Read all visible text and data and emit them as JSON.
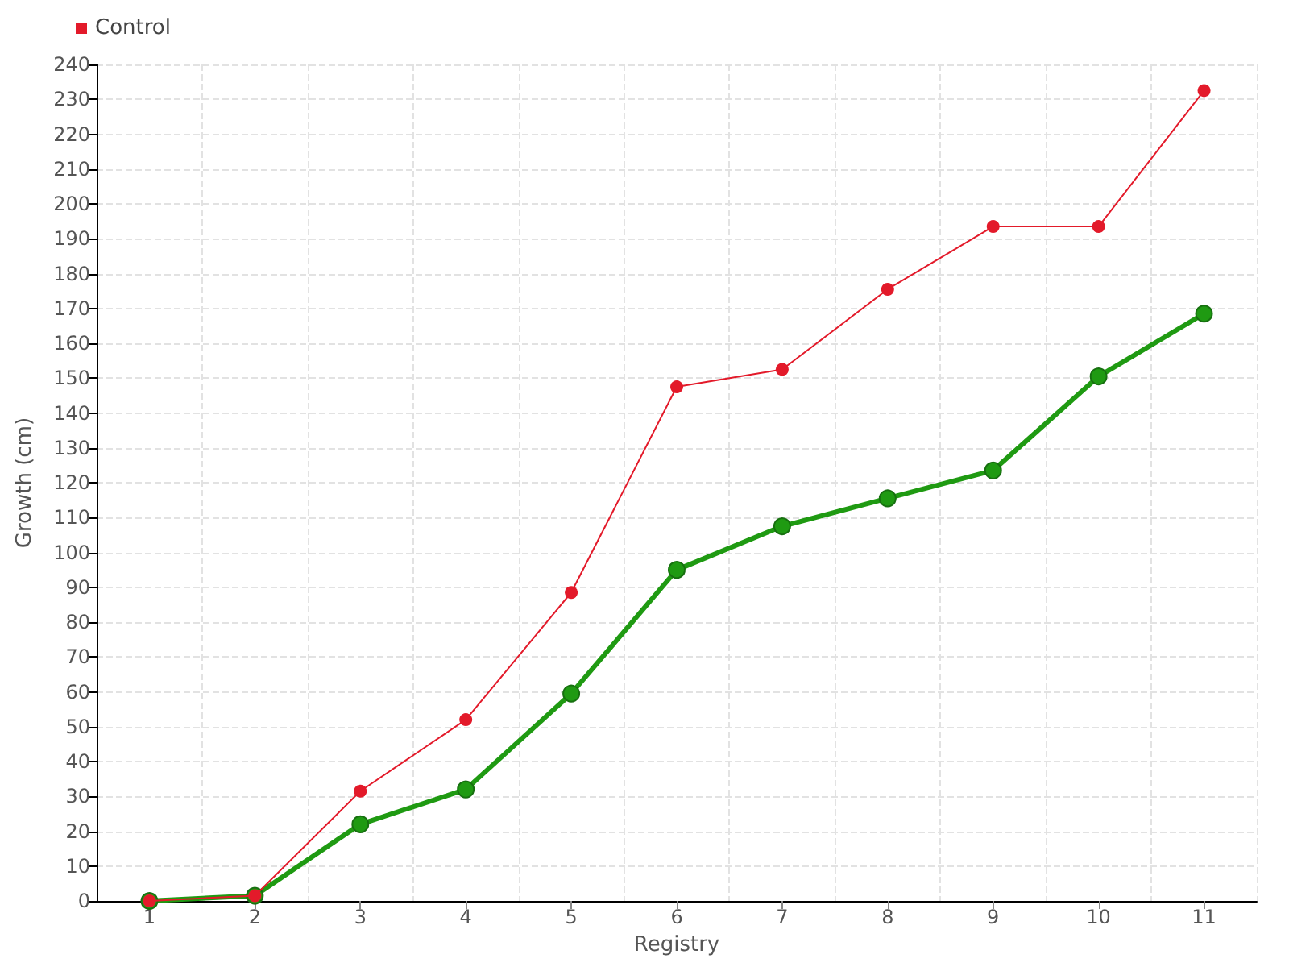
{
  "chart_data": {
    "type": "line",
    "xlabel": "Registry",
    "ylabel": "Growth (cm)",
    "categories": [
      "1",
      "2",
      "3",
      "4",
      "5",
      "6",
      "7",
      "8",
      "9",
      "10",
      "11"
    ],
    "series": [
      {
        "color": "#1f9a12",
        "values": [
          0,
          1.5,
          22,
          32,
          59.5,
          95,
          107.5,
          115.5,
          123.5,
          150.5,
          168.5
        ]
      },
      {
        "name": "Control",
        "color": "#e31a2a",
        "values": [
          0,
          1.5,
          31.5,
          52,
          88.5,
          147.5,
          152.5,
          175.5,
          193.5,
          193.5,
          232.5
        ]
      }
    ],
    "ylim": [
      0,
      240
    ],
    "yticks": [
      0,
      10,
      20,
      30,
      40,
      50,
      60,
      70,
      80,
      90,
      100,
      110,
      120,
      130,
      140,
      150,
      160,
      170,
      180,
      190,
      200,
      210,
      220,
      230,
      240
    ],
    "grid": true,
    "legend": "top left",
    "marker": "circle",
    "line_style": "solid"
  }
}
